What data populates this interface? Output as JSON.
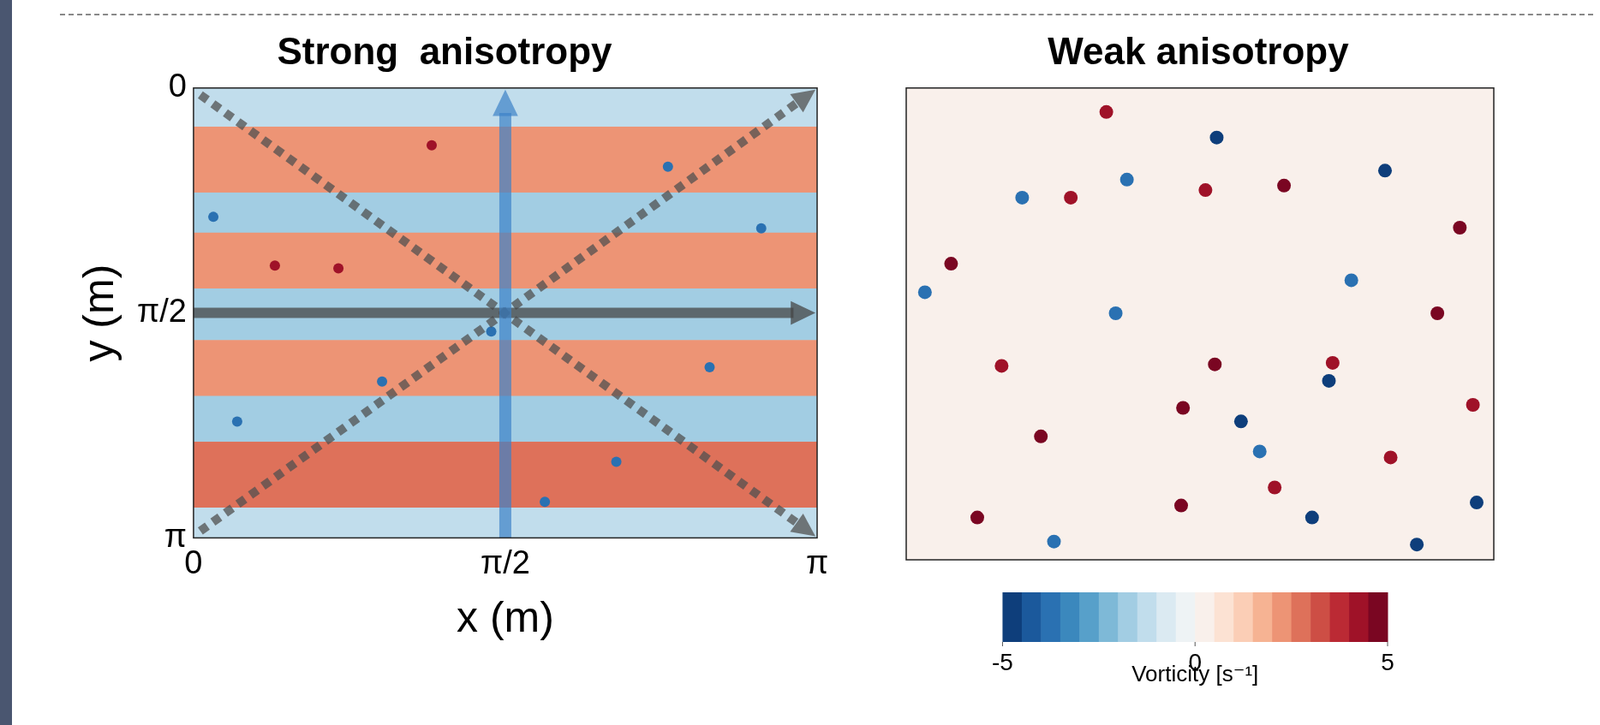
{
  "chart_data": [
    {
      "type": "heatmap",
      "title": "Strong  anisotropy",
      "xlabel": "x (m)",
      "ylabel": "y (m)",
      "xlim": [
        0,
        3.1416
      ],
      "ylim": [
        3.1416,
        0
      ],
      "xticks": [
        0,
        {
          "value": 1.5708,
          "label": "π/2"
        },
        {
          "value": 3.1416,
          "label": "π"
        }
      ],
      "yticks": [
        0,
        {
          "value": 1.5708,
          "label": "π/2"
        },
        {
          "value": 3.1416,
          "label": "π"
        }
      ],
      "grid": false,
      "bands": {
        "edges": [
          0,
          0.27,
          0.73,
          1.01,
          1.4,
          1.76,
          2.15,
          2.47,
          2.93,
          3.1416
        ],
        "values": [
          -1.5,
          2,
          -2,
          2,
          -2,
          2,
          -2,
          2.5,
          -1.5
        ]
      },
      "vortices": {
        "x": [
          0.41,
          0.73,
          0.22,
          2.39,
          2.86,
          1.77,
          2.13,
          1.2,
          0.95,
          2.6,
          1.5,
          0.1
        ],
        "y": [
          1.24,
          1.26,
          2.33,
          0.55,
          0.98,
          2.89,
          2.61,
          0.4,
          2.05,
          1.95,
          1.7,
          0.9
        ],
        "values": [
          4,
          4,
          -4,
          -4,
          -4,
          -4,
          -4,
          4,
          -4,
          -4,
          -4,
          -4
        ]
      }
    },
    {
      "type": "heatmap",
      "title": "Weak anisotropy",
      "xlim": [
        0,
        3.1416
      ],
      "ylim": [
        3.1416,
        0
      ],
      "tick_labels": false,
      "grid": false,
      "bands": {
        "edges": [
          0,
          3.1416
        ],
        "values": [
          0
        ]
      },
      "vortices": {
        "x": [
          0.24,
          2.02,
          2.96,
          2.28,
          1.65,
          1.48,
          1.6,
          0.88,
          0.72,
          1.47,
          0.38,
          1.97,
          2.59,
          1.07,
          2.84,
          3.03,
          0.51,
          1.66,
          2.26,
          2.38,
          2.73,
          1.12,
          1.79,
          0.62,
          2.56,
          0.79,
          2.17,
          3.05,
          0.1,
          1.18,
          1.89
        ],
        "y": [
          1.17,
          0.65,
          0.93,
          1.83,
          1.84,
          2.13,
          0.68,
          0.73,
          2.32,
          2.78,
          2.86,
          2.66,
          2.46,
          0.16,
          1.5,
          2.11,
          1.85,
          0.33,
          1.95,
          1.28,
          3.04,
          1.5,
          2.22,
          0.73,
          0.55,
          3.02,
          2.86,
          2.76,
          1.36,
          0.61,
          2.42
        ],
        "values": [
          5,
          5,
          5,
          4,
          5,
          5,
          4,
          4,
          5,
          5,
          5,
          4,
          4,
          4,
          5,
          4,
          4,
          -5,
          -5,
          -4,
          -5,
          -4,
          -5,
          -4,
          -5,
          -4,
          -5,
          -5,
          -4,
          -4,
          -4
        ]
      }
    }
  ],
  "colorbar": {
    "label": "Vorticity [s⁻¹]",
    "range": [
      -5,
      5
    ],
    "ticks": [
      -5,
      0,
      5
    ]
  }
}
